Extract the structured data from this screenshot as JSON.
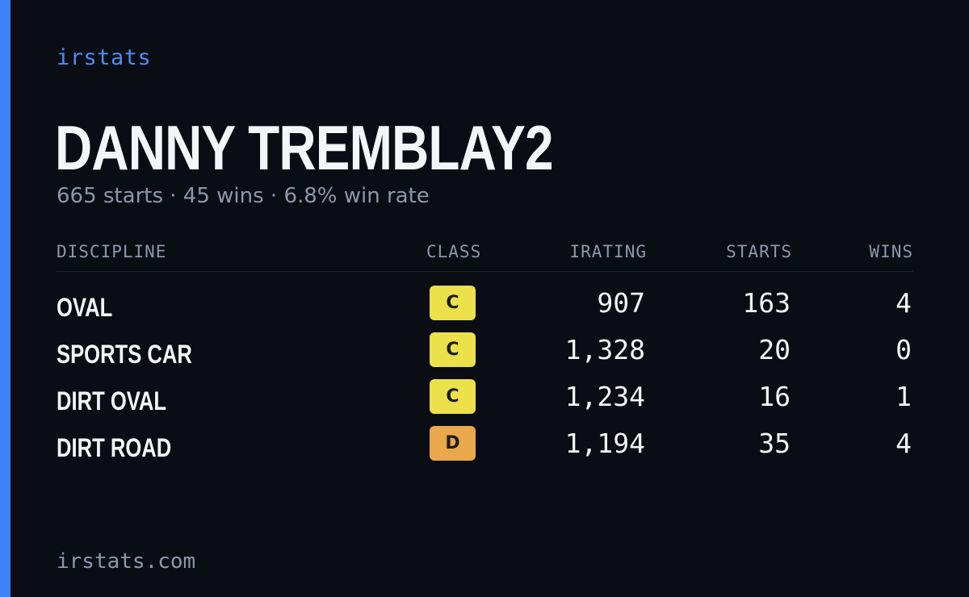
{
  "brand": "irstats",
  "driver": {
    "name": "DANNY TREMBLAY2",
    "summary": "665 starts · 45 wins · 6.8% win rate"
  },
  "table": {
    "headers": {
      "discipline": "DISCIPLINE",
      "class": "CLASS",
      "irating": "IRATING",
      "starts": "STARTS",
      "wins": "WINS"
    },
    "rows": [
      {
        "discipline": "OVAL",
        "class": "C",
        "class_color": "#ece04b",
        "irating": "907",
        "starts": "163",
        "wins": "4"
      },
      {
        "discipline": "SPORTS CAR",
        "class": "C",
        "class_color": "#ece04b",
        "irating": "1,328",
        "starts": "20",
        "wins": "0"
      },
      {
        "discipline": "DIRT OVAL",
        "class": "C",
        "class_color": "#ece04b",
        "irating": "1,234",
        "starts": "16",
        "wins": "1"
      },
      {
        "discipline": "DIRT ROAD",
        "class": "D",
        "class_color": "#e9a84b",
        "irating": "1,194",
        "starts": "35",
        "wins": "4"
      }
    ]
  },
  "footer": "irstats.com",
  "colors": {
    "background": "#0a0d14",
    "accent": "#3b82f6",
    "brand": "#4c8df6",
    "text_primary": "#f3f5f9",
    "text_muted": "#8d97aa"
  }
}
